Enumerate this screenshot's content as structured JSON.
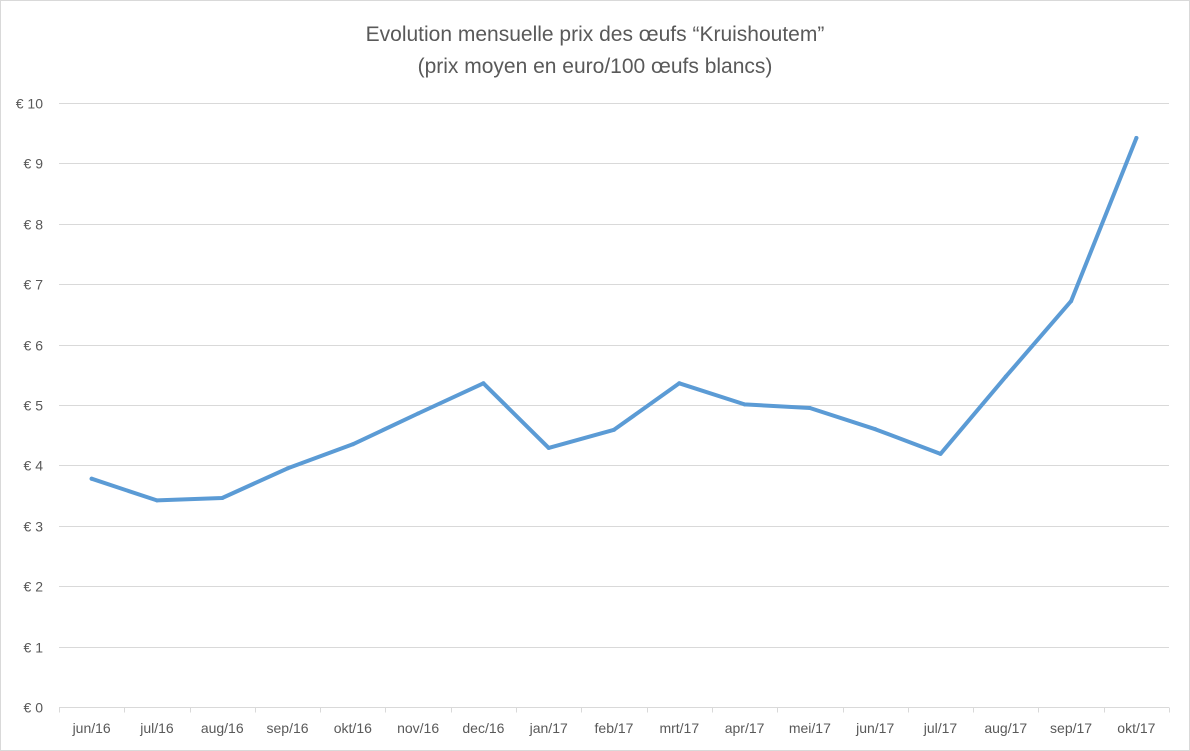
{
  "chart_data": {
    "type": "line",
    "title": "Evolution mensuelle prix des œufs “Kruishoutem”",
    "subtitle": "(prix moyen en euro/100 œufs blancs)",
    "xlabel": "",
    "ylabel": "",
    "categories": [
      "jun/16",
      "jul/16",
      "aug/16",
      "sep/16",
      "okt/16",
      "nov/16",
      "dec/16",
      "jan/17",
      "feb/17",
      "mrt/17",
      "apr/17",
      "mei/17",
      "jun/17",
      "jul/17",
      "aug/17",
      "sep/17",
      "okt/17"
    ],
    "series": [
      {
        "values": [
          3.78,
          3.42,
          3.46,
          3.95,
          4.35,
          4.86,
          5.36,
          4.29,
          4.59,
          5.36,
          5.01,
          4.95,
          4.6,
          4.19,
          5.47,
          6.72,
          9.42
        ],
        "color": "#5b9bd5"
      }
    ],
    "ylim": [
      0,
      10
    ],
    "yticks": [
      0,
      1,
      2,
      3,
      4,
      5,
      6,
      7,
      8,
      9,
      10
    ],
    "ytick_labels": [
      "€ 0",
      "€ 1",
      "€ 2",
      "€ 3",
      "€ 4",
      "€ 5",
      "€ 6",
      "€ 7",
      "€ 8",
      "€ 9",
      "€ 10"
    ],
    "grid": true,
    "legend": "none"
  }
}
